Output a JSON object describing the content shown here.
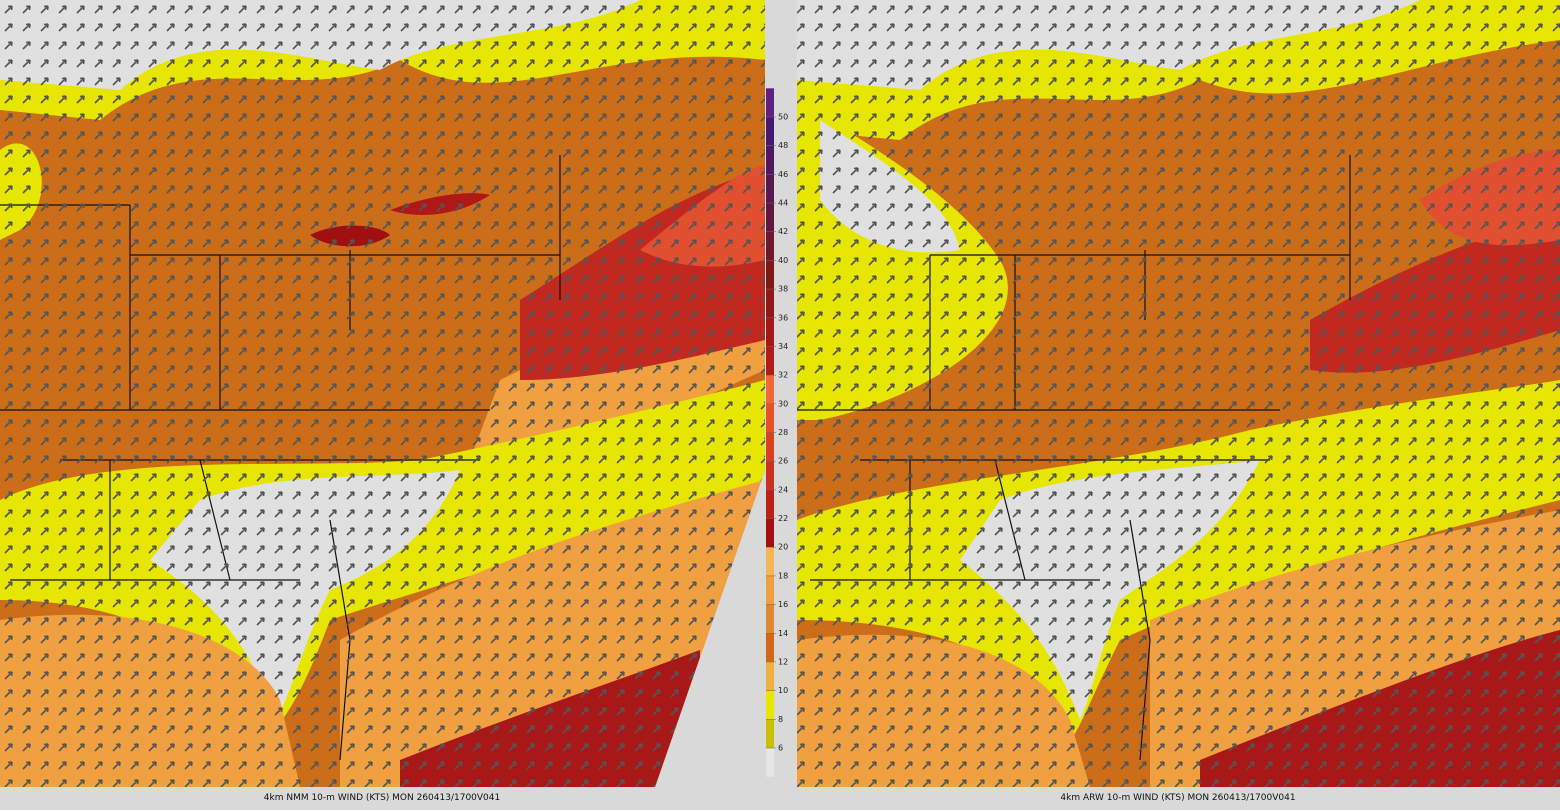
{
  "panels": [
    {
      "caption": "4km NMM 10-m WIND (KTS) MON 260413/1700V041"
    },
    {
      "caption": "4km ARW 10-m WIND (KTS) MON 260413/1700V041"
    }
  ],
  "colorbar": {
    "ticks": [
      6,
      8,
      10,
      12,
      14,
      16,
      18,
      20,
      22,
      24,
      26,
      28,
      30,
      32,
      34,
      36,
      38,
      40,
      42,
      44,
      46,
      48,
      50
    ],
    "colors": [
      "#e6e6e6",
      "#c8c000",
      "#e6e600",
      "#f0b040",
      "#d06818",
      "#e08830",
      "#eea040",
      "#f7b555",
      "#a01010",
      "#b82018",
      "#c83020",
      "#d84020",
      "#e85028",
      "#f06838",
      "#b01c18",
      "#a01818",
      "#901818",
      "#801818",
      "#701830",
      "#601840",
      "#581850",
      "#501860",
      "#481870",
      "#602080"
    ]
  }
}
